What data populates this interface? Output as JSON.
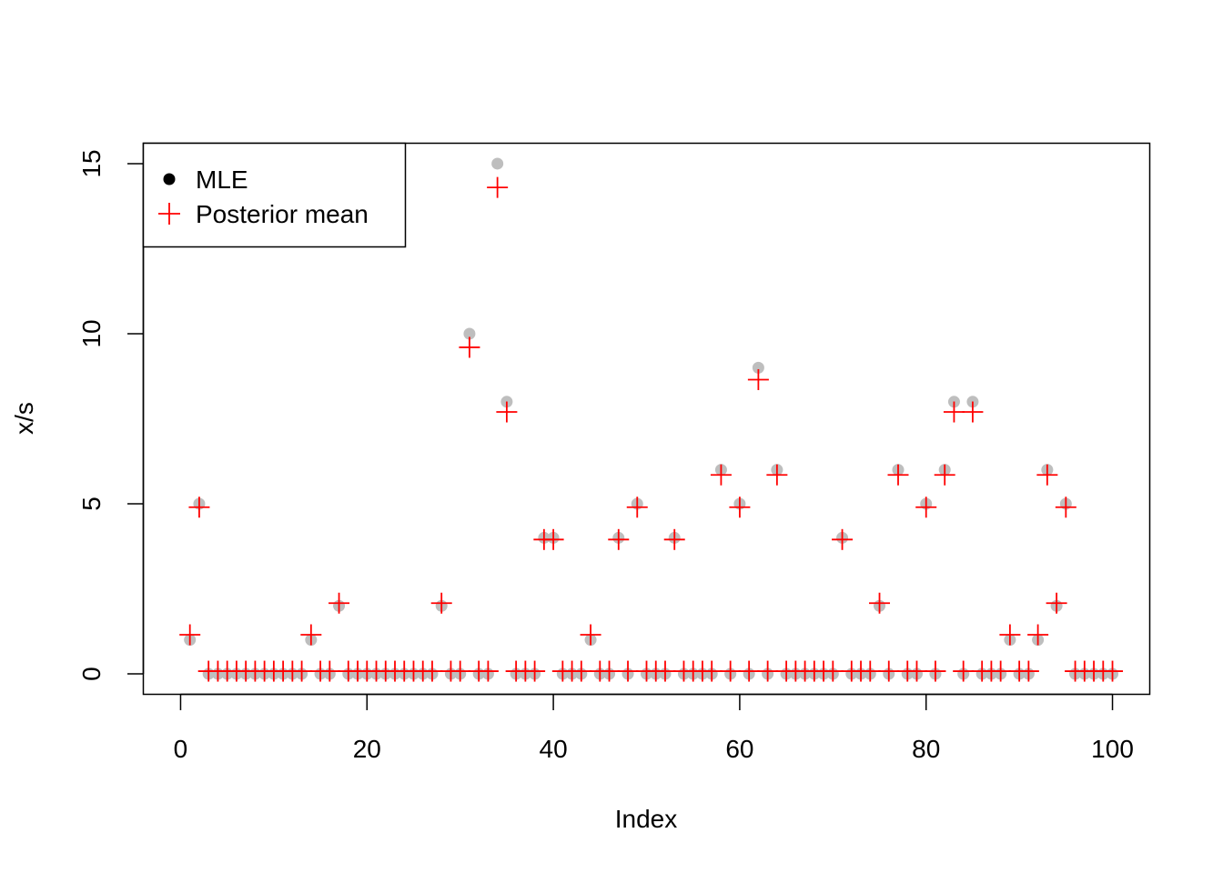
{
  "chart_data": {
    "type": "scatter",
    "title": "",
    "xlabel": "Index",
    "ylabel": "x/s",
    "xlim": [
      -4,
      104
    ],
    "ylim": [
      -0.6,
      15.6
    ],
    "xticks": [
      0,
      20,
      40,
      60,
      80,
      100
    ],
    "xtick_labels": [
      "0",
      "20",
      "40",
      "60",
      "80",
      "100"
    ],
    "yticks": [
      0,
      5,
      10,
      15
    ],
    "ytick_labels": [
      "0",
      "5",
      "10",
      "15"
    ],
    "grid": false,
    "legend": {
      "position": "top-left",
      "entries": [
        {
          "label": "MLE",
          "marker": "filled-circle"
        },
        {
          "label": "Posterior mean",
          "marker": "plus"
        }
      ]
    },
    "colors": {
      "mle": "#bebebe",
      "mle_legend": "#000000",
      "posterior": "#ff0000"
    },
    "series": [
      {
        "name": "MLE",
        "marker": "filled-circle",
        "x": [
          1,
          2,
          3,
          4,
          5,
          6,
          7,
          8,
          9,
          10,
          11,
          12,
          13,
          14,
          15,
          16,
          17,
          18,
          19,
          20,
          21,
          22,
          23,
          24,
          25,
          26,
          27,
          28,
          29,
          30,
          31,
          32,
          33,
          34,
          35,
          36,
          37,
          38,
          39,
          40,
          41,
          42,
          43,
          44,
          45,
          46,
          47,
          48,
          49,
          50,
          51,
          52,
          53,
          54,
          55,
          56,
          57,
          58,
          59,
          60,
          61,
          62,
          63,
          64,
          65,
          66,
          67,
          68,
          69,
          70,
          71,
          72,
          73,
          74,
          75,
          76,
          77,
          78,
          79,
          80,
          81,
          82,
          83,
          84,
          85,
          86,
          87,
          88,
          89,
          90,
          91,
          92,
          93,
          94,
          95,
          96,
          97,
          98,
          99,
          100
        ],
        "y": [
          1,
          5,
          0,
          0,
          0,
          0,
          0,
          0,
          0,
          0,
          0,
          0,
          0,
          1,
          0,
          0,
          2,
          0,
          0,
          0,
          0,
          0,
          0,
          0,
          0,
          0,
          0,
          2,
          0,
          0,
          10,
          0,
          0,
          15,
          8,
          0,
          0,
          0,
          4,
          4,
          0,
          0,
          0,
          1,
          0,
          0,
          4,
          0,
          5,
          0,
          0,
          0,
          4,
          0,
          0,
          0,
          0,
          6,
          0,
          5,
          0,
          9,
          0,
          6,
          0,
          0,
          0,
          0,
          0,
          0,
          4,
          0,
          0,
          0,
          2,
          0,
          6,
          0,
          0,
          5,
          0,
          6,
          8,
          0,
          8,
          0,
          0,
          0,
          1,
          0,
          0,
          1,
          6,
          2,
          5,
          0,
          0,
          0,
          0,
          0
        ]
      },
      {
        "name": "Posterior mean",
        "marker": "plus",
        "x": [
          1,
          2,
          3,
          4,
          5,
          6,
          7,
          8,
          9,
          10,
          11,
          12,
          13,
          14,
          15,
          16,
          17,
          18,
          19,
          20,
          21,
          22,
          23,
          24,
          25,
          26,
          27,
          28,
          29,
          30,
          31,
          32,
          33,
          34,
          35,
          36,
          37,
          38,
          39,
          40,
          41,
          42,
          43,
          44,
          45,
          46,
          47,
          48,
          49,
          50,
          51,
          52,
          53,
          54,
          55,
          56,
          57,
          58,
          59,
          60,
          61,
          62,
          63,
          64,
          65,
          66,
          67,
          68,
          69,
          70,
          71,
          72,
          73,
          74,
          75,
          76,
          77,
          78,
          79,
          80,
          81,
          82,
          83,
          84,
          85,
          86,
          87,
          88,
          89,
          90,
          91,
          92,
          93,
          94,
          95,
          96,
          97,
          98,
          99,
          100
        ],
        "y": [
          1.15,
          4.9,
          0.08,
          0.08,
          0.08,
          0.08,
          0.08,
          0.08,
          0.08,
          0.08,
          0.08,
          0.08,
          0.08,
          1.15,
          0.08,
          0.08,
          2.08,
          0.08,
          0.08,
          0.08,
          0.08,
          0.08,
          0.08,
          0.08,
          0.08,
          0.08,
          0.08,
          2.08,
          0.08,
          0.08,
          9.6,
          0.08,
          0.08,
          14.3,
          7.7,
          0.08,
          0.08,
          0.08,
          3.95,
          3.95,
          0.08,
          0.08,
          0.08,
          1.15,
          0.08,
          0.08,
          3.95,
          0.08,
          4.9,
          0.08,
          0.08,
          0.08,
          3.95,
          0.08,
          0.08,
          0.08,
          0.08,
          5.85,
          0.08,
          4.9,
          0.08,
          8.65,
          0.08,
          5.85,
          0.08,
          0.08,
          0.08,
          0.08,
          0.08,
          0.08,
          3.95,
          0.08,
          0.08,
          0.08,
          2.08,
          0.08,
          5.85,
          0.08,
          0.08,
          4.9,
          0.08,
          5.85,
          7.7,
          0.08,
          7.7,
          0.08,
          0.08,
          0.08,
          1.15,
          0.08,
          0.08,
          1.15,
          5.85,
          2.08,
          4.9,
          0.08,
          0.08,
          0.08,
          0.08,
          0.08
        ]
      }
    ]
  }
}
